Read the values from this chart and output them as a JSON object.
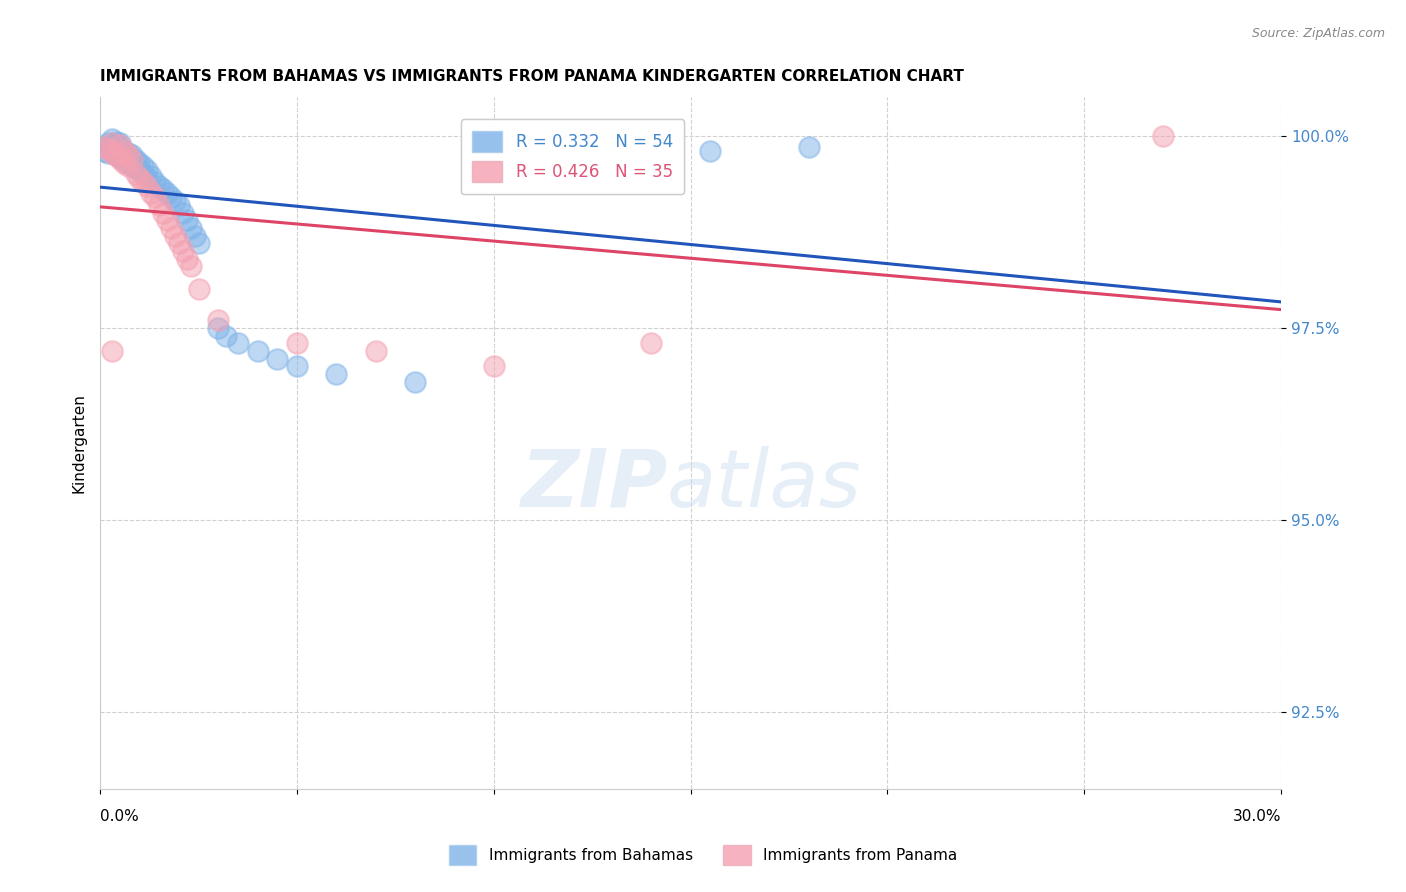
{
  "title": "IMMIGRANTS FROM BAHAMAS VS IMMIGRANTS FROM PANAMA KINDERGARTEN CORRELATION CHART",
  "source": "Source: ZipAtlas.com",
  "ylabel_label": "Kindergarten",
  "legend_entry1": "R = 0.332   N = 54",
  "legend_entry2": "R = 0.426   N = 35",
  "legend_label1": "Immigrants from Bahamas",
  "legend_label2": "Immigrants from Panama",
  "xlim": [
    0.0,
    0.3
  ],
  "ylim": [
    0.915,
    1.005
  ],
  "yticks": [
    0.925,
    0.95,
    0.975,
    1.0
  ],
  "blue_color": "#7EB3E8",
  "pink_color": "#F4A0B0",
  "blue_line_color": "#2255BB",
  "pink_line_color": "#DD4466",
  "bahamas_x": [
    0.001,
    0.002,
    0.002,
    0.002,
    0.003,
    0.003,
    0.003,
    0.004,
    0.004,
    0.005,
    0.005,
    0.005,
    0.006,
    0.006,
    0.006,
    0.007,
    0.007,
    0.007,
    0.008,
    0.008,
    0.008,
    0.009,
    0.009,
    0.01,
    0.01,
    0.011,
    0.011,
    0.012,
    0.012,
    0.013,
    0.014,
    0.015,
    0.016,
    0.017,
    0.018,
    0.019,
    0.02,
    0.021,
    0.022,
    0.023,
    0.024,
    0.025,
    0.03,
    0.032,
    0.035,
    0.04,
    0.045,
    0.05,
    0.06,
    0.08,
    0.1,
    0.13,
    0.155,
    0.18
  ],
  "bahamas_y": [
    0.998,
    0.9985,
    0.999,
    0.9978,
    0.9995,
    0.9988,
    0.9982,
    0.9992,
    0.9975,
    0.999,
    0.9985,
    0.9972,
    0.998,
    0.9975,
    0.9968,
    0.9978,
    0.9972,
    0.9965,
    0.9975,
    0.997,
    0.996,
    0.9968,
    0.9958,
    0.9965,
    0.9955,
    0.996,
    0.995,
    0.9955,
    0.9945,
    0.9948,
    0.994,
    0.9935,
    0.993,
    0.9925,
    0.992,
    0.9915,
    0.991,
    0.99,
    0.989,
    0.988,
    0.987,
    0.986,
    0.975,
    0.974,
    0.973,
    0.972,
    0.971,
    0.97,
    0.969,
    0.968,
    0.999,
    0.9995,
    0.998,
    0.9985
  ],
  "panama_x": [
    0.001,
    0.002,
    0.003,
    0.003,
    0.004,
    0.005,
    0.005,
    0.006,
    0.006,
    0.007,
    0.007,
    0.008,
    0.009,
    0.01,
    0.011,
    0.012,
    0.013,
    0.014,
    0.015,
    0.016,
    0.017,
    0.018,
    0.019,
    0.02,
    0.021,
    0.022,
    0.023,
    0.025,
    0.03,
    0.05,
    0.07,
    0.1,
    0.14,
    0.27,
    0.003
  ],
  "panama_y": [
    0.9985,
    0.9982,
    0.999,
    0.9978,
    0.9975,
    0.9988,
    0.997,
    0.998,
    0.9965,
    0.9975,
    0.996,
    0.9968,
    0.995,
    0.9945,
    0.994,
    0.9935,
    0.9925,
    0.992,
    0.991,
    0.99,
    0.989,
    0.988,
    0.987,
    0.986,
    0.985,
    0.984,
    0.983,
    0.98,
    0.976,
    0.973,
    0.972,
    0.97,
    0.973,
    1.0,
    0.972
  ]
}
